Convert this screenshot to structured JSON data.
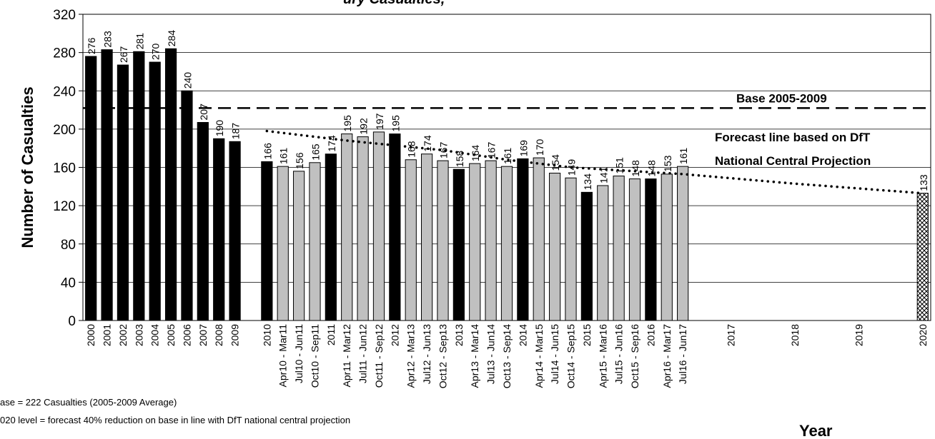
{
  "chart_data": {
    "type": "bar",
    "title": "",
    "xlabel": "Year",
    "ylabel": "Number of Casualties",
    "ylim": [
      0,
      320
    ],
    "yticks": [
      0,
      40,
      80,
      120,
      160,
      200,
      240,
      280,
      320
    ],
    "grid": true,
    "categories": [
      "2000",
      "2001",
      "2002",
      "2003",
      "2004",
      "2005",
      "2006",
      "2007",
      "2008",
      "2009",
      "",
      "2010",
      "Apr10 - Mar11",
      "Jul10 - Jun11",
      "Oct10 - Sep11",
      "2011",
      "Apr11 - Mar12",
      "Jul11 - Jun12",
      "Oct11 - Sep12",
      "2012",
      "Apr12 - Mar13",
      "Jul12 - Jun13",
      "Oct12 - Sep13",
      "2013",
      "Apr13 - Mar14",
      "Jul13 - Jun14",
      "Oct13 - Sep14",
      "2014",
      "Apr14 - Mar15",
      "Jul14 - Jun15",
      "Oct14 - Sep15",
      "2015",
      "Apr15 - Mar16",
      "Jul15 - Jun16",
      "Oct15 - Sep16",
      "2016",
      "Apr16 - Mar17",
      "Jul16 - Jun17",
      "",
      "",
      "2017",
      "",
      "",
      "",
      "2018",
      "",
      "",
      "",
      "2019",
      "",
      "",
      "",
      "2020"
    ],
    "values": [
      276,
      283,
      267,
      281,
      270,
      284,
      240,
      207,
      190,
      187,
      null,
      166,
      161,
      156,
      165,
      174,
      195,
      192,
      197,
      195,
      168,
      174,
      167,
      158,
      164,
      167,
      161,
      169,
      170,
      154,
      149,
      134,
      141,
      151,
      148,
      148,
      153,
      161,
      null,
      null,
      null,
      null,
      null,
      null,
      null,
      null,
      null,
      null,
      null,
      null,
      null,
      null,
      133
    ],
    "bar_kind": [
      "annual",
      "annual",
      "annual",
      "annual",
      "annual",
      "annual",
      "annual",
      "annual",
      "annual",
      "annual",
      "none",
      "annual",
      "rolling",
      "rolling",
      "rolling",
      "annual",
      "rolling",
      "rolling",
      "rolling",
      "annual",
      "rolling",
      "rolling",
      "rolling",
      "annual",
      "rolling",
      "rolling",
      "rolling",
      "annual",
      "rolling",
      "rolling",
      "rolling",
      "annual",
      "rolling",
      "rolling",
      "rolling",
      "annual",
      "rolling",
      "rolling",
      "none",
      "none",
      "none",
      "none",
      "none",
      "none",
      "none",
      "none",
      "none",
      "none",
      "none",
      "none",
      "none",
      "none",
      "target"
    ],
    "series_colors": {
      "annual": "#000000",
      "rolling": "#c0c0c0",
      "target": "#ffffff"
    },
    "baseline": {
      "label": "Base 2005-2009",
      "value": 222
    },
    "forecast": {
      "label_line1": "Forecast line based on DfT",
      "label_line2": "National Central Projection",
      "points": [
        {
          "x": "2010",
          "y": 198
        },
        {
          "x": "Apr11 - Mar12",
          "y": 188
        },
        {
          "x": "Oct12 - Sep13",
          "y": 178
        },
        {
          "x": "Oct13 - Sep14",
          "y": 168
        },
        {
          "x": "Oct14 - Sep15",
          "y": 160
        },
        {
          "x": "Jul16 - Jun17",
          "y": 153
        },
        {
          "x": "2018",
          "y": 143
        },
        {
          "x": "2020",
          "y": 133
        }
      ]
    }
  },
  "title_fragment": "ury Casualties,",
  "footnotes": [
    "ase = 222 Casualties (2005-2009 Average)",
    "020 level = forecast 40% reduction on base in line with DfT national central projection"
  ]
}
